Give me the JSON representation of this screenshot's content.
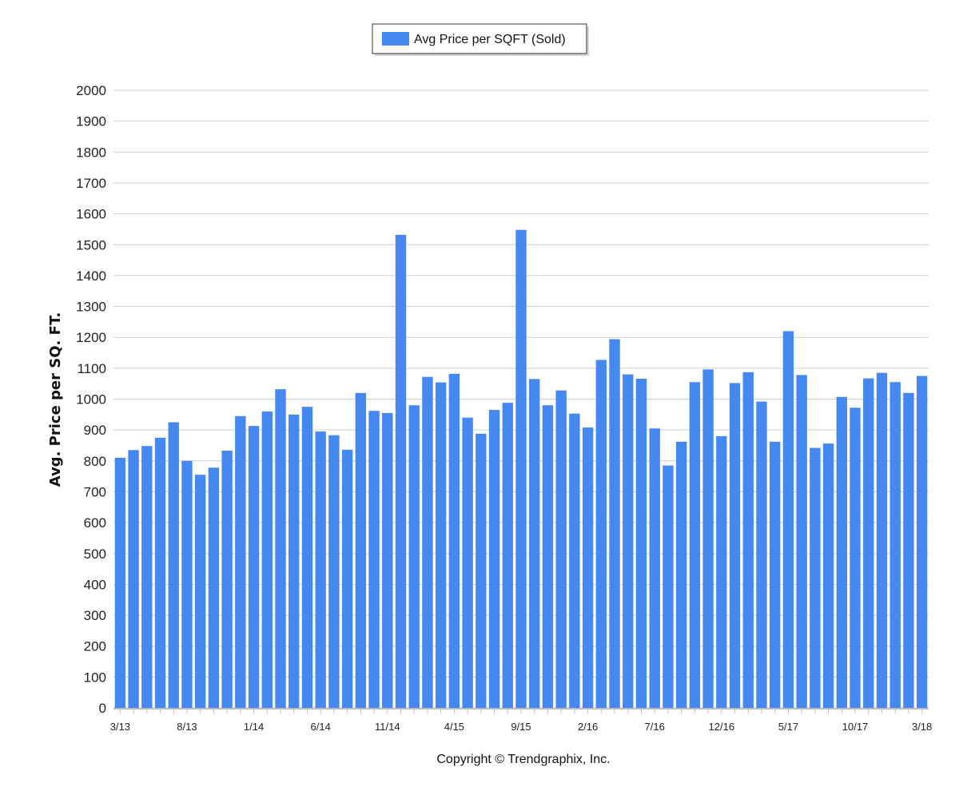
{
  "copyright": "Copyright © Trendgraphix, Inc.",
  "chart_data": {
    "type": "bar",
    "title": "",
    "xlabel": "",
    "ylabel": "Avg. Price per SQ. FT.",
    "ylim": [
      0,
      2000
    ],
    "yticks": [
      0,
      100,
      200,
      300,
      400,
      500,
      600,
      700,
      800,
      900,
      1000,
      1100,
      1200,
      1300,
      1400,
      1500,
      1600,
      1700,
      1800,
      1900,
      2000
    ],
    "grid": true,
    "legend_position": "top-center",
    "colors": {
      "bar": "#4488f0",
      "grid": "#cfcfcf",
      "axis": "#bdbdbd"
    },
    "categories": [
      "3/13",
      "4/13",
      "5/13",
      "6/13",
      "7/13",
      "8/13",
      "9/13",
      "10/13",
      "11/13",
      "12/13",
      "1/14",
      "2/14",
      "3/14",
      "4/14",
      "5/14",
      "6/14",
      "7/14",
      "8/14",
      "9/14",
      "10/14",
      "11/14",
      "12/14",
      "1/15",
      "2/15",
      "3/15",
      "4/15",
      "5/15",
      "6/15",
      "7/15",
      "8/15",
      "9/15",
      "10/15",
      "11/15",
      "12/15",
      "1/16",
      "2/16",
      "3/16",
      "4/16",
      "5/16",
      "6/16",
      "7/16",
      "8/16",
      "9/16",
      "10/16",
      "11/16",
      "12/16",
      "1/17",
      "2/17",
      "3/17",
      "4/17",
      "5/17",
      "6/17",
      "7/17",
      "8/17",
      "9/17",
      "10/17",
      "11/17",
      "12/17",
      "1/18",
      "2/18",
      "3/18"
    ],
    "tick_labels": [
      "3/13",
      "8/13",
      "1/14",
      "6/14",
      "11/14",
      "4/15",
      "9/15",
      "2/16",
      "7/16",
      "12/16",
      "5/17",
      "10/17",
      "3/18"
    ],
    "series": [
      {
        "name": "Avg Price per SQFT (Sold)",
        "values": [
          810,
          835,
          848,
          875,
          925,
          800,
          755,
          778,
          833,
          945,
          913,
          960,
          1032,
          950,
          975,
          895,
          883,
          836,
          1020,
          962,
          955,
          1532,
          980,
          1072,
          1054,
          1082,
          940,
          888,
          965,
          988,
          1548,
          1065,
          980,
          1028,
          953,
          908,
          1127,
          1194,
          1080,
          1066,
          905,
          785,
          862,
          1055,
          1096,
          880,
          1052,
          1087,
          992,
          862,
          1220,
          1078,
          842,
          856,
          1007,
          972,
          1067,
          1085,
          1055,
          1020,
          1075
        ]
      }
    ]
  }
}
